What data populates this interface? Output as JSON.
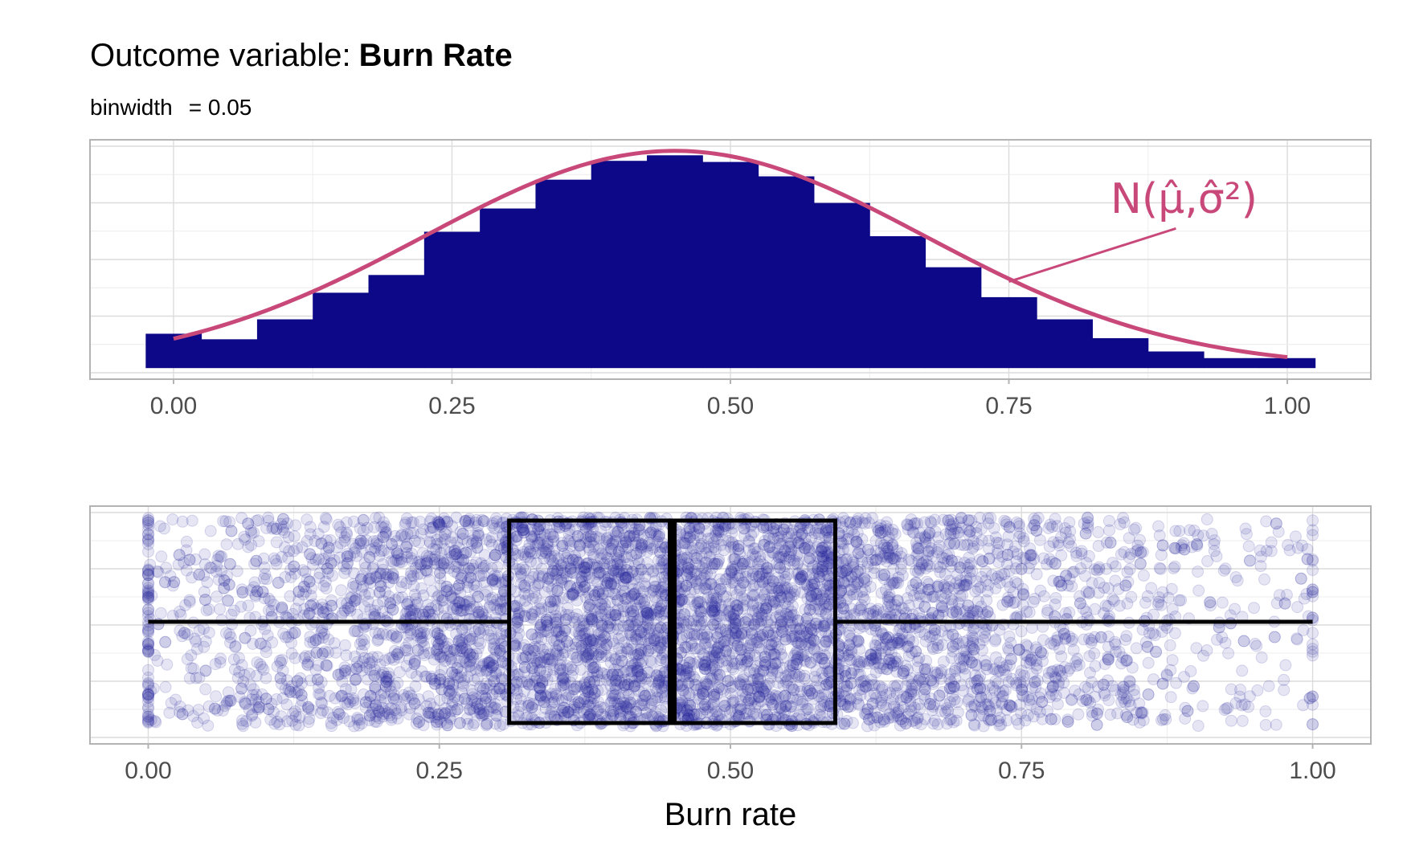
{
  "title": {
    "prefix": "Outcome variable:",
    "variable": "Burn Rate"
  },
  "subtitle": {
    "key": "binwidth",
    "value": "= 0.05"
  },
  "annotation": {
    "text": "N(μ̂,σ̂²)",
    "color": "#c9487a"
  },
  "colors": {
    "bars": "#0d0887",
    "curve": "#c9487a",
    "points": "#2a2a9e",
    "box": "#000000"
  },
  "chart_data": [
    {
      "type": "bar",
      "name": "histogram",
      "binwidth": 0.05,
      "bin_centers": [
        0.0,
        0.05,
        0.1,
        0.15,
        0.2,
        0.25,
        0.3,
        0.35,
        0.4,
        0.45,
        0.5,
        0.55,
        0.6,
        0.65,
        0.7,
        0.75,
        0.8,
        0.85,
        0.9,
        0.95,
        1.0
      ],
      "values": [
        0.155,
        0.13,
        0.22,
        0.34,
        0.42,
        0.615,
        0.72,
        0.85,
        0.935,
        0.96,
        0.93,
        0.865,
        0.745,
        0.595,
        0.455,
        0.32,
        0.22,
        0.135,
        0.075,
        0.045,
        0.045
      ],
      "normal_fit": {
        "mean": 0.45,
        "sd": 0.225,
        "peak": 0.98
      },
      "xlim": [
        -0.075,
        1.075
      ],
      "ylim": [
        -0.05,
        1.03
      ],
      "xticks": [
        "0.00",
        "0.25",
        "0.50",
        "0.75",
        "1.00"
      ],
      "grid": true
    },
    {
      "type": "scatter",
      "name": "boxplot-with-jitter",
      "box": {
        "min": 0.0,
        "q1": 0.31,
        "median": 0.45,
        "q3": 0.59,
        "max": 1.0
      },
      "points": {
        "count": 6000,
        "mean": 0.45,
        "sd": 0.225,
        "opacity": 0.12
      },
      "xlim": [
        -0.05,
        1.05
      ],
      "xticks": [
        "0.00",
        "0.25",
        "0.50",
        "0.75",
        "1.00"
      ],
      "xlabel": "Burn rate",
      "grid": true
    }
  ]
}
